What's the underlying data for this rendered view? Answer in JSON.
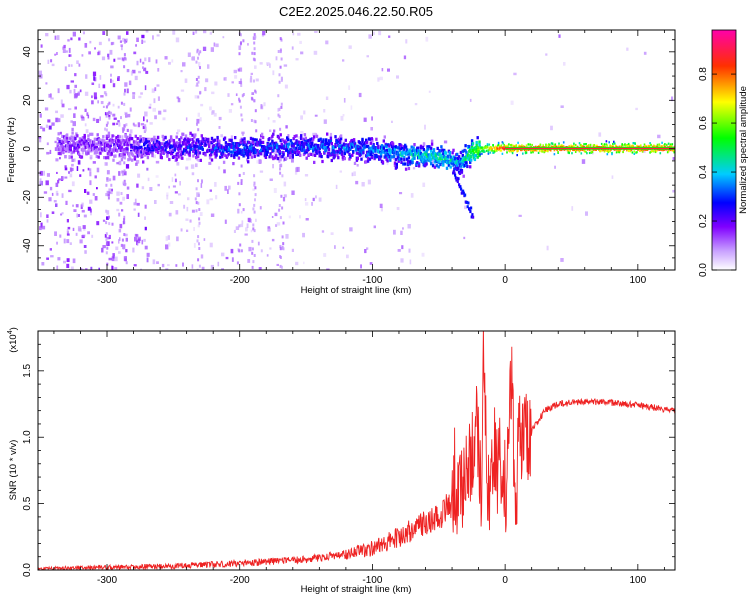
{
  "title": "C2E2.2025.046.22.50.R05",
  "chart_data": [
    {
      "type": "heatmap",
      "xlabel": "Height of straight line (km)",
      "ylabel": "Frequency (Hz)",
      "xlim": [
        -352,
        128
      ],
      "ylim": [
        -50,
        49
      ],
      "xticks": [
        -300,
        -200,
        -100,
        0,
        100
      ],
      "yticks": [
        -40,
        -20,
        0,
        20,
        40
      ],
      "grid": false,
      "colorbar": {
        "label": "Normalized spectral amplitude",
        "range": [
          0,
          0.98
        ],
        "ticks": [
          "0.0",
          "0.2",
          "0.4",
          "0.6",
          "0.8"
        ],
        "colors": [
          "#ffffff",
          "#8000ff",
          "#0000ff",
          "#00ffff",
          "#00ff00",
          "#ffff00",
          "#ff0000",
          "#ff00aa"
        ]
      },
      "ridge": {
        "x": [
          -340,
          -300,
          -260,
          -200,
          -150,
          -110,
          -80,
          -60,
          -45,
          -35,
          -25,
          -15,
          0,
          128
        ],
        "center_hz": [
          2,
          1,
          1,
          0,
          1,
          0,
          -2,
          -3,
          -4,
          -6,
          -1,
          0,
          0,
          0
        ],
        "amplitude": [
          0.12,
          0.14,
          0.22,
          0.28,
          0.28,
          0.32,
          0.38,
          0.42,
          0.45,
          0.35,
          0.55,
          0.7,
          0.95,
          0.95
        ]
      }
    },
    {
      "type": "line",
      "xlabel": "Height of straight line (km)",
      "ylabel": "SNR (10 * v/v)",
      "y_multiplier": "(x10",
      "y_multiplier_exp": "4",
      "y_multiplier_close": ")",
      "xlim": [
        -352,
        128
      ],
      "ylim": [
        0,
        1.8
      ],
      "xticks": [
        -300,
        -200,
        -100,
        0,
        100
      ],
      "yticks": [
        "0.0",
        "0.5",
        "1.0",
        "1.5"
      ],
      "grid": false,
      "series": [
        {
          "color": "#ee2222",
          "x": [
            -352,
            -300,
            -250,
            -200,
            -150,
            -120,
            -100,
            -80,
            -60,
            -50,
            -40,
            -35,
            -30,
            -25,
            -22,
            -20,
            -18,
            -16,
            -14,
            -12,
            -10,
            -8,
            -6,
            -4,
            -2,
            0,
            2,
            5,
            8,
            10,
            15,
            20,
            30,
            40,
            60,
            80,
            100,
            128
          ],
          "y": [
            0.01,
            0.02,
            0.03,
            0.05,
            0.08,
            0.12,
            0.16,
            0.25,
            0.35,
            0.4,
            0.5,
            0.6,
            0.7,
            0.9,
            1.1,
            0.9,
            0.5,
            1.7,
            0.7,
            0.6,
            0.8,
            0.9,
            0.7,
            1.0,
            0.6,
            0.5,
            0.9,
            1.4,
            0.3,
            1.0,
            1.0,
            1.05,
            1.2,
            1.25,
            1.27,
            1.26,
            1.24,
            1.2
          ]
        }
      ]
    }
  ]
}
